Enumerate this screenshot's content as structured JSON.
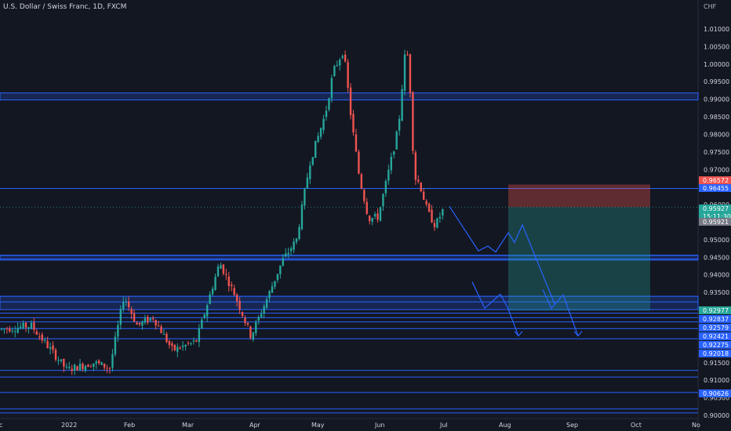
{
  "header": {
    "title": "U.S. Dollar / Swiss Franc, 1D, FXCM",
    "currency": "CHF"
  },
  "chart_data": {
    "type": "candlestick",
    "ylim": [
      0.9,
      1.015
    ],
    "y_ticks": [
      "1.01000",
      "1.00500",
      "1.00000",
      "0.99500",
      "0.99000",
      "0.98500",
      "0.98000",
      "0.97500",
      "0.97000",
      "0.96500",
      "0.96000",
      "0.95500",
      "0.95000",
      "0.94500",
      "0.94000",
      "0.93500",
      "0.93000",
      "0.92500",
      "0.92000",
      "0.91500",
      "0.91000",
      "0.90500",
      "0.90000"
    ],
    "x_ticks": [
      "ec",
      "2022",
      "Feb",
      "Mar",
      "Apr",
      "May",
      "Jun",
      "Jul",
      "Aug",
      "Sep",
      "Oct",
      "No"
    ],
    "colors": {
      "up": "#26a69a",
      "down": "#ef5350",
      "zone": "#2962ff",
      "projection": "#2962ff"
    },
    "horizontal_lines": [
      0.9646,
      0.9456,
      0.9445,
      0.9339,
      0.9323,
      0.9291,
      0.9278,
      0.9266,
      0.9247,
      0.9218,
      0.9109,
      0.9128,
      0.9065,
      0.9018,
      0.9007
    ],
    "zones": [
      {
        "from": 0.9898,
        "to": 0.9918
      },
      {
        "from": 0.9442,
        "to": 0.9455
      },
      {
        "from": 0.9301,
        "to": 0.9339
      }
    ],
    "position": {
      "stop": 0.96572,
      "entry": 0.95927,
      "target": 0.92977
    },
    "price_tags": [
      {
        "label": "0.96572",
        "bg": "#ef5350"
      },
      {
        "label": "0.96455",
        "bg": "#2962ff"
      },
      {
        "label": "0.95927",
        "bg": "#26a69a",
        "sub": "15:11:30"
      },
      {
        "label": "0.95921",
        "bg": "#787b86"
      },
      {
        "label": "0.92977",
        "bg": "#26a69a"
      },
      {
        "label": "0.92837",
        "bg": "#2962ff"
      },
      {
        "label": "0.92579",
        "bg": "#2962ff"
      },
      {
        "label": "0.92421",
        "bg": "#2962ff"
      },
      {
        "label": "0.92275",
        "bg": "#2962ff"
      },
      {
        "label": "0.92018",
        "bg": "#2962ff"
      },
      {
        "label": "0.90626",
        "bg": "#2962ff"
      }
    ],
    "projection": [
      [
        0.9595,
        0.9468,
        0.9482,
        0.9465,
        0.952,
        0.9492,
        0.9542,
        0.9318
      ],
      [
        0.938,
        0.9305,
        0.9345,
        0.9308,
        0.9226
      ],
      [
        0.9358,
        0.9305,
        0.9343,
        0.9226
      ]
    ]
  }
}
